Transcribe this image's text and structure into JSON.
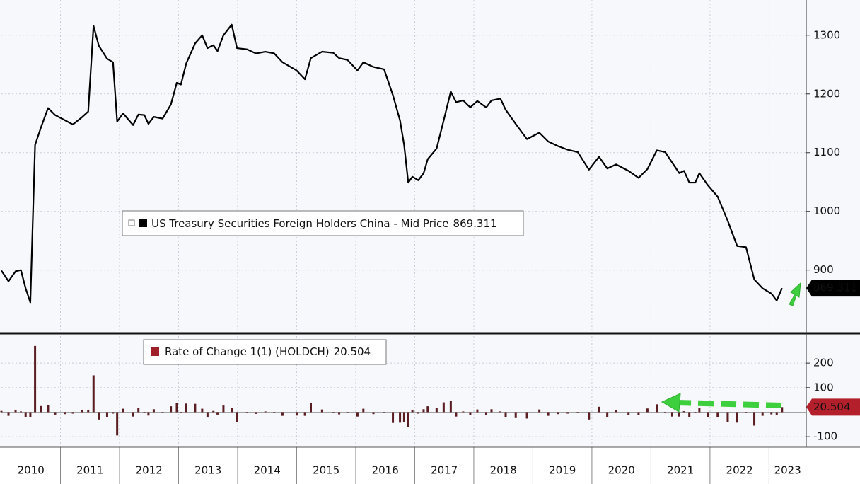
{
  "chart_data": [
    {
      "type": "line",
      "x": [
        2010.0,
        2010.12,
        2010.24,
        2010.33,
        2010.41,
        2010.49,
        2010.57,
        2010.67,
        2010.79,
        2010.91,
        2011.08,
        2011.21,
        2011.36,
        2011.47,
        2011.56,
        2011.65,
        2011.79,
        2011.89,
        2011.96,
        2012.06,
        2012.23,
        2012.32,
        2012.42,
        2012.49,
        2012.58,
        2012.73,
        2012.87,
        2012.97,
        2013.04,
        2013.13,
        2013.28,
        2013.4,
        2013.49,
        2013.59,
        2013.66,
        2013.76,
        2013.9,
        2013.99,
        2014.16,
        2014.31,
        2014.47,
        2014.62,
        2014.76,
        2015.0,
        2015.14,
        2015.24,
        2015.43,
        2015.62,
        2015.72,
        2015.86,
        2016.03,
        2016.13,
        2016.3,
        2016.48,
        2016.63,
        2016.75,
        2016.82,
        2016.89,
        2016.96,
        2017.06,
        2017.15,
        2017.22,
        2017.37,
        2017.49,
        2017.61,
        2017.7,
        2017.82,
        2017.94,
        2018.06,
        2018.21,
        2018.3,
        2018.45,
        2018.54,
        2018.71,
        2018.9,
        2019.11,
        2019.26,
        2019.43,
        2019.59,
        2019.76,
        2019.95,
        2020.12,
        2020.26,
        2020.41,
        2020.62,
        2020.79,
        2020.94,
        2021.1,
        2021.24,
        2021.36,
        2021.48,
        2021.56,
        2021.65,
        2021.75,
        2021.82,
        2021.96,
        2022.13,
        2022.3,
        2022.46,
        2022.61,
        2022.75,
        2022.89,
        2023.04,
        2023.13,
        2023.22
      ],
      "series": [
        {
          "name": "US Treasury Securities Foreign Holders China - Mid Price",
          "color": "#000000",
          "values": [
            899,
            881,
            898,
            900,
            869,
            845,
            1113,
            1143,
            1176,
            1164,
            1155,
            1148,
            1160,
            1170,
            1316,
            1282,
            1260,
            1254,
            1153,
            1167,
            1147,
            1165,
            1164,
            1149,
            1161,
            1158,
            1182,
            1219,
            1216,
            1252,
            1286,
            1300,
            1278,
            1283,
            1273,
            1300,
            1318,
            1278,
            1276,
            1269,
            1272,
            1269,
            1254,
            1240,
            1225,
            1261,
            1272,
            1270,
            1261,
            1258,
            1240,
            1254,
            1246,
            1242,
            1198,
            1155,
            1113,
            1049,
            1059,
            1053,
            1065,
            1089,
            1107,
            1155,
            1204,
            1186,
            1189,
            1177,
            1188,
            1177,
            1189,
            1192,
            1173,
            1149,
            1123,
            1134,
            1119,
            1111,
            1105,
            1101,
            1071,
            1093,
            1073,
            1080,
            1069,
            1057,
            1072,
            1104,
            1101,
            1083,
            1065,
            1069,
            1049,
            1049,
            1065,
            1045,
            1025,
            984,
            941,
            939,
            884,
            869,
            860,
            848,
            869.311
          ]
        }
      ],
      "xlim": [
        2010,
        2023.63
      ],
      "xticks": [
        2010,
        2011,
        2012,
        2013,
        2014,
        2015,
        2016,
        2017,
        2018,
        2019,
        2020,
        2021,
        2022,
        2023
      ],
      "ylim": [
        796,
        1360
      ],
      "yticks": [
        900,
        1000,
        1100,
        1200,
        1300
      ],
      "grid": true
    },
    {
      "type": "bar",
      "x": [
        2010.0,
        2010.12,
        2010.24,
        2010.33,
        2010.41,
        2010.49,
        2010.57,
        2010.67,
        2010.79,
        2010.91,
        2011.08,
        2011.21,
        2011.36,
        2011.47,
        2011.56,
        2011.65,
        2011.79,
        2011.89,
        2011.96,
        2012.06,
        2012.23,
        2012.32,
        2012.42,
        2012.49,
        2012.58,
        2012.73,
        2012.87,
        2012.97,
        2013.04,
        2013.13,
        2013.28,
        2013.4,
        2013.49,
        2013.59,
        2013.66,
        2013.76,
        2013.9,
        2013.99,
        2014.16,
        2014.31,
        2014.47,
        2014.62,
        2014.76,
        2015.0,
        2015.14,
        2015.24,
        2015.43,
        2015.62,
        2015.72,
        2015.86,
        2016.03,
        2016.13,
        2016.3,
        2016.48,
        2016.63,
        2016.75,
        2016.82,
        2016.89,
        2016.96,
        2017.06,
        2017.15,
        2017.22,
        2017.37,
        2017.49,
        2017.61,
        2017.7,
        2017.82,
        2017.94,
        2018.06,
        2018.21,
        2018.3,
        2018.45,
        2018.54,
        2018.71,
        2018.9,
        2019.11,
        2019.26,
        2019.43,
        2019.59,
        2019.76,
        2019.95,
        2020.12,
        2020.26,
        2020.41,
        2020.62,
        2020.79,
        2020.94,
        2021.1,
        2021.24,
        2021.36,
        2021.48,
        2021.56,
        2021.65,
        2021.75,
        2021.82,
        2021.96,
        2022.13,
        2022.3,
        2022.46,
        2022.61,
        2022.75,
        2022.89,
        2023.04,
        2023.13,
        2023.22
      ],
      "series": [
        {
          "name": "Rate of Change 1(1) (HOLDCH)",
          "color": "#5a1e22",
          "values": [
            5,
            -15,
            10,
            3,
            -20,
            -20,
            270,
            25,
            30,
            -10,
            -8,
            -6,
            10,
            10,
            150,
            -30,
            -20,
            -6,
            -95,
            14,
            -18,
            18,
            -2,
            -14,
            12,
            -3,
            24,
            36,
            -3,
            35,
            34,
            14,
            -22,
            5,
            -10,
            27,
            18,
            -40,
            -2,
            -7,
            3,
            -3,
            -15,
            -14,
            -15,
            36,
            11,
            -2,
            -9,
            -3,
            -18,
            14,
            -8,
            -4,
            -44,
            -43,
            -42,
            -60,
            10,
            -6,
            12,
            24,
            18,
            40,
            45,
            -18,
            3,
            -12,
            11,
            -11,
            12,
            3,
            -19,
            -24,
            -26,
            11,
            -15,
            -8,
            -6,
            -4,
            -30,
            22,
            -20,
            7,
            -11,
            -12,
            15,
            32,
            -3,
            -18,
            -18,
            4,
            -20,
            0,
            16,
            -20,
            -20,
            -41,
            -43,
            -2,
            -55,
            -15,
            -9,
            -12,
            20.504
          ]
        }
      ],
      "xlim": [
        2010,
        2023.63
      ],
      "xticks": [
        2010,
        2011,
        2012,
        2013,
        2014,
        2015,
        2016,
        2017,
        2018,
        2019,
        2020,
        2021,
        2022,
        2023
      ],
      "ylim": [
        -143,
        310
      ],
      "yticks": [
        -100,
        100,
        200
      ],
      "grid": true
    }
  ]
}
